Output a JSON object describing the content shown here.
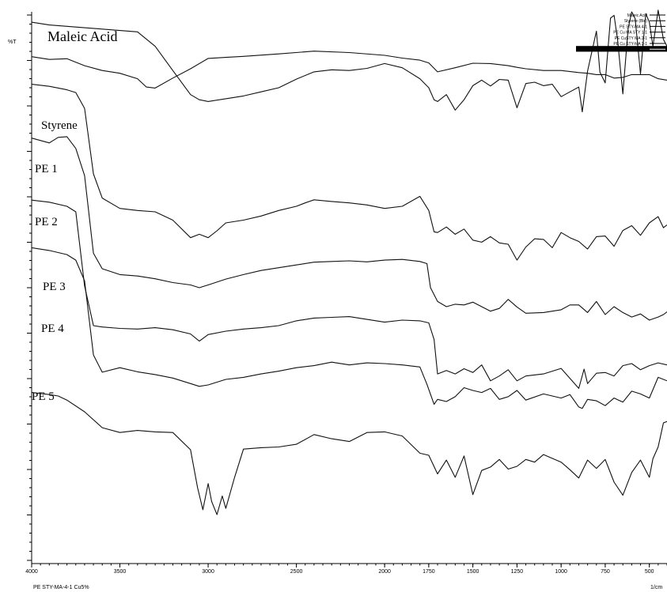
{
  "chart_data": {
    "type": "line",
    "title": "",
    "xlabel": "1/cm",
    "ylabel": "%T",
    "xlim": [
      4000,
      400
    ],
    "x_reversed": true,
    "x_ticks": [
      {
        "value": 4000,
        "label": "4000"
      },
      {
        "value": 3500,
        "label": "3500"
      },
      {
        "value": 3000,
        "label": "3000"
      },
      {
        "value": 2500,
        "label": "2500"
      },
      {
        "value": 2000,
        "label": "2000"
      },
      {
        "value": 1750,
        "label": "1750"
      },
      {
        "value": 1500,
        "label": "1500"
      },
      {
        "value": 1250,
        "label": "1250"
      },
      {
        "value": 1000,
        "label": "1000"
      },
      {
        "value": 750,
        "label": "750"
      },
      {
        "value": 500,
        "label": "500"
      }
    ],
    "footer_label": "PE STY-MA-4-1 Cu5%",
    "legend": {
      "placement": "top-right",
      "entries": [
        "Maleic Acid",
        "Styrene (Ble)",
        "PE STY-MA 4-1",
        "PE Cu MA STY 1-1",
        "PE CuSTY MA 2-1",
        "PE Cu STY-MA 3-1",
        "PE STY-MA-4-1 Cu5%"
      ]
    },
    "trace_labels": [
      "Maleic Acid",
      "Styrene",
      "PE 1",
      "PE 2",
      "PE 3",
      "PE 4",
      "PE 5"
    ],
    "series": [
      {
        "name": "Maleic Acid",
        "x": [
          4000,
          3900,
          3800,
          3700,
          3600,
          3500,
          3400,
          3300,
          3200,
          3100,
          3050,
          3000,
          2900,
          2800,
          2700,
          2600,
          2500,
          2400,
          2300,
          2200,
          2100,
          2000,
          1900,
          1800,
          1750,
          1720,
          1700,
          1650,
          1600,
          1550,
          1500,
          1450,
          1400,
          1350,
          1300,
          1250,
          1200,
          1150,
          1100,
          1050,
          1000,
          950,
          900,
          880,
          850,
          800,
          780,
          750,
          720,
          700,
          680,
          650,
          620,
          600,
          580,
          550,
          520,
          500,
          480,
          450,
          420,
          400
        ],
        "y": [
          97.0,
          96.2,
          95.8,
          95.4,
          95.0,
          94.6,
          94.2,
          90.0,
          83.0,
          76.0,
          74.5,
          74.0,
          74.8,
          75.6,
          76.8,
          78.0,
          80.5,
          82.6,
          83.2,
          83.0,
          83.6,
          85.0,
          83.8,
          80.6,
          78.0,
          74.5,
          74.0,
          76.0,
          71.5,
          74.5,
          78.6,
          80.2,
          78.5,
          80.4,
          80.2,
          72.2,
          79.2,
          79.6,
          78.6,
          79.0,
          75.4,
          76.8,
          78.2,
          71.0,
          82.8,
          94.4,
          82.5,
          79.4,
          98.2,
          99.0,
          92.0,
          76.2,
          95.2,
          100.0,
          98.0,
          82.0,
          99.5,
          97.0,
          90.0,
          100.5,
          92.0,
          90.0
        ]
      },
      {
        "name": "Styrene",
        "x": [
          4000,
          3900,
          3800,
          3700,
          3600,
          3500,
          3400,
          3350,
          3300,
          3200,
          3100,
          3000,
          2900,
          2800,
          2600,
          2400,
          2200,
          2000,
          1900,
          1800,
          1750,
          1700,
          1600,
          1500,
          1400,
          1300,
          1250,
          1200,
          1100,
          1000,
          900,
          850,
          800,
          750,
          700,
          650,
          600,
          500,
          450,
          400
        ],
        "y": [
          87.0,
          86.2,
          86.4,
          84.4,
          83.0,
          82.2,
          80.6,
          78.2,
          77.9,
          80.8,
          83.5,
          86.5,
          86.8,
          87.1,
          87.8,
          88.6,
          88.2,
          87.4,
          86.6,
          86.0,
          85.2,
          82.6,
          83.8,
          85.1,
          85.0,
          84.4,
          83.9,
          83.5,
          83.0,
          83.0,
          82.4,
          82.2,
          81.8,
          81.8,
          80.8,
          81.0,
          81.8,
          81.8,
          80.6,
          80.2
        ]
      },
      {
        "name": "PE 1",
        "x": [
          4000,
          3900,
          3800,
          3750,
          3700,
          3650,
          3600,
          3500,
          3400,
          3300,
          3200,
          3100,
          3050,
          3000,
          2950,
          2900,
          2800,
          2700,
          2600,
          2500,
          2450,
          2400,
          2300,
          2200,
          2100,
          2000,
          1900,
          1800,
          1750,
          1720,
          1700,
          1650,
          1600,
          1550,
          1500,
          1450,
          1400,
          1350,
          1300,
          1250,
          1200,
          1150,
          1100,
          1050,
          1000,
          950,
          900,
          850,
          800,
          750,
          700,
          650,
          600,
          550,
          500,
          450,
          420,
          400
        ],
        "y": [
          79.0,
          78.4,
          77.4,
          76.6,
          72.0,
          53.0,
          46.0,
          43.0,
          42.4,
          42.0,
          39.6,
          34.5,
          35.5,
          34.5,
          36.5,
          38.8,
          39.6,
          40.8,
          42.4,
          43.6,
          44.6,
          45.5,
          45.0,
          44.6,
          44.0,
          43.0,
          43.6,
          46.5,
          42.4,
          36.2,
          36.0,
          37.6,
          35.5,
          37.0,
          33.8,
          33.2,
          34.8,
          33.0,
          32.6,
          28.0,
          31.8,
          34.2,
          34.0,
          31.6,
          36.0,
          34.5,
          33.4,
          31.2,
          34.8,
          35.0,
          32.0,
          36.6,
          38.0,
          35.2,
          38.8,
          40.6,
          37.4,
          38.2
        ]
      },
      {
        "name": "PE 2",
        "x": [
          4000,
          3900,
          3850,
          3800,
          3750,
          3700,
          3650,
          3600,
          3500,
          3400,
          3300,
          3200,
          3100,
          3050,
          3000,
          2900,
          2800,
          2700,
          2600,
          2500,
          2400,
          2300,
          2200,
          2100,
          2000,
          1900,
          1800,
          1760,
          1740,
          1700,
          1650,
          1600,
          1550,
          1500,
          1450,
          1400,
          1350,
          1300,
          1250,
          1200,
          1100,
          1000,
          950,
          900,
          850,
          800,
          750,
          700,
          650,
          600,
          550,
          500,
          450,
          420,
          400
        ],
        "y": [
          63.4,
          62.0,
          63.6,
          63.8,
          60.4,
          52.5,
          30.0,
          25.5,
          23.8,
          23.4,
          22.6,
          21.5,
          20.8,
          20.0,
          20.8,
          22.5,
          23.8,
          25.0,
          25.8,
          26.6,
          27.4,
          27.6,
          27.8,
          27.5,
          28.0,
          28.2,
          27.6,
          27.0,
          20.0,
          16.0,
          14.5,
          15.2,
          15.0,
          15.8,
          14.5,
          13.2,
          14.0,
          16.6,
          14.4,
          12.6,
          12.8,
          13.6,
          15.0,
          15.0,
          12.8,
          16.0,
          12.2,
          14.5,
          12.8,
          11.5,
          12.4,
          10.6,
          11.5,
          12.2,
          13.0
        ]
      },
      {
        "name": "PE 3",
        "x": [
          4000,
          3900,
          3800,
          3750,
          3700,
          3650,
          3600,
          3500,
          3400,
          3300,
          3200,
          3100,
          3050,
          3000,
          2900,
          2800,
          2700,
          2600,
          2500,
          2400,
          2300,
          2200,
          2100,
          2000,
          1900,
          1800,
          1750,
          1720,
          1700,
          1650,
          1600,
          1550,
          1500,
          1450,
          1400,
          1350,
          1300,
          1250,
          1200,
          1100,
          1000,
          900,
          870,
          850,
          800,
          750,
          700,
          650,
          600,
          550,
          500,
          450,
          400
        ],
        "y": [
          45.4,
          44.8,
          43.6,
          42.0,
          20.5,
          9.0,
          8.6,
          8.2,
          8.0,
          8.4,
          7.8,
          6.6,
          4.5,
          6.4,
          7.4,
          8.0,
          8.4,
          9.0,
          10.4,
          11.2,
          11.4,
          11.6,
          10.8,
          10.0,
          10.6,
          10.4,
          9.8,
          5.0,
          -5.0,
          -4.0,
          -5.0,
          -3.5,
          -4.6,
          -2.4,
          -7.0,
          -5.6,
          -3.8,
          -7.0,
          -5.6,
          -5.0,
          -3.4,
          -9.2,
          -3.6,
          -7.8,
          -4.8,
          -4.6,
          -5.6,
          -2.6,
          -2.0,
          -3.8,
          -2.6,
          -1.8,
          -2.4
        ]
      },
      {
        "name": "PE 4",
        "x": [
          4000,
          3900,
          3800,
          3750,
          3700,
          3650,
          3600,
          3500,
          3400,
          3300,
          3200,
          3100,
          3050,
          3000,
          2900,
          2800,
          2700,
          2600,
          2500,
          2400,
          2300,
          2200,
          2100,
          2000,
          1900,
          1800,
          1760,
          1720,
          1700,
          1650,
          1600,
          1550,
          1500,
          1450,
          1400,
          1350,
          1300,
          1250,
          1200,
          1100,
          1000,
          950,
          900,
          880,
          850,
          800,
          750,
          700,
          650,
          600,
          550,
          500,
          450,
          400
        ],
        "y": [
          31.6,
          30.8,
          29.6,
          28.0,
          22.0,
          0.5,
          -4.5,
          -3.2,
          -4.4,
          -5.2,
          -6.2,
          -7.8,
          -8.6,
          -8.2,
          -6.6,
          -6.0,
          -5.0,
          -4.2,
          -3.2,
          -2.6,
          -1.6,
          -2.4,
          -1.8,
          -2.0,
          -2.4,
          -3.0,
          -8.0,
          -13.8,
          -12.4,
          -13.0,
          -11.6,
          -9.0,
          -9.8,
          -10.4,
          -9.2,
          -12.4,
          -11.6,
          -9.8,
          -12.6,
          -10.8,
          -12.0,
          -11.0,
          -14.6,
          -15.0,
          -12.4,
          -12.8,
          -14.2,
          -12.0,
          -13.2,
          -10.0,
          -10.8,
          -12.0,
          -6.0,
          -7.0
        ]
      },
      {
        "name": "PE 5",
        "x": [
          4000,
          3900,
          3850,
          3800,
          3700,
          3600,
          3500,
          3400,
          3300,
          3200,
          3100,
          3060,
          3030,
          3000,
          2980,
          2950,
          2920,
          2900,
          2850,
          2800,
          2700,
          2600,
          2500,
          2400,
          2300,
          2200,
          2100,
          2000,
          1900,
          1800,
          1750,
          1700,
          1650,
          1600,
          1550,
          1500,
          1450,
          1400,
          1350,
          1300,
          1250,
          1200,
          1150,
          1100,
          1000,
          950,
          900,
          850,
          800,
          750,
          700,
          650,
          600,
          550,
          500,
          480,
          450,
          420,
          400
        ],
        "y": [
          -10.4,
          -11.0,
          -11.4,
          -12.6,
          -16.0,
          -20.6,
          -22.0,
          -21.4,
          -21.8,
          -22.0,
          -27.0,
          -38.0,
          -44.4,
          -36.8,
          -42.0,
          -45.8,
          -40.4,
          -44.0,
          -35.0,
          -26.8,
          -26.4,
          -26.2,
          -25.4,
          -22.6,
          -23.8,
          -24.6,
          -22.0,
          -21.8,
          -23.0,
          -28.0,
          -28.6,
          -34.0,
          -30.0,
          -35.0,
          -28.8,
          -40.0,
          -33.0,
          -32.0,
          -29.8,
          -32.6,
          -31.8,
          -29.8,
          -30.6,
          -28.4,
          -30.6,
          -32.8,
          -35.2,
          -30.0,
          -32.4,
          -29.8,
          -36.4,
          -40.2,
          -33.6,
          -30.0,
          -35.0,
          -29.6,
          -26.2,
          -19.2,
          -18.8
        ]
      }
    ]
  }
}
